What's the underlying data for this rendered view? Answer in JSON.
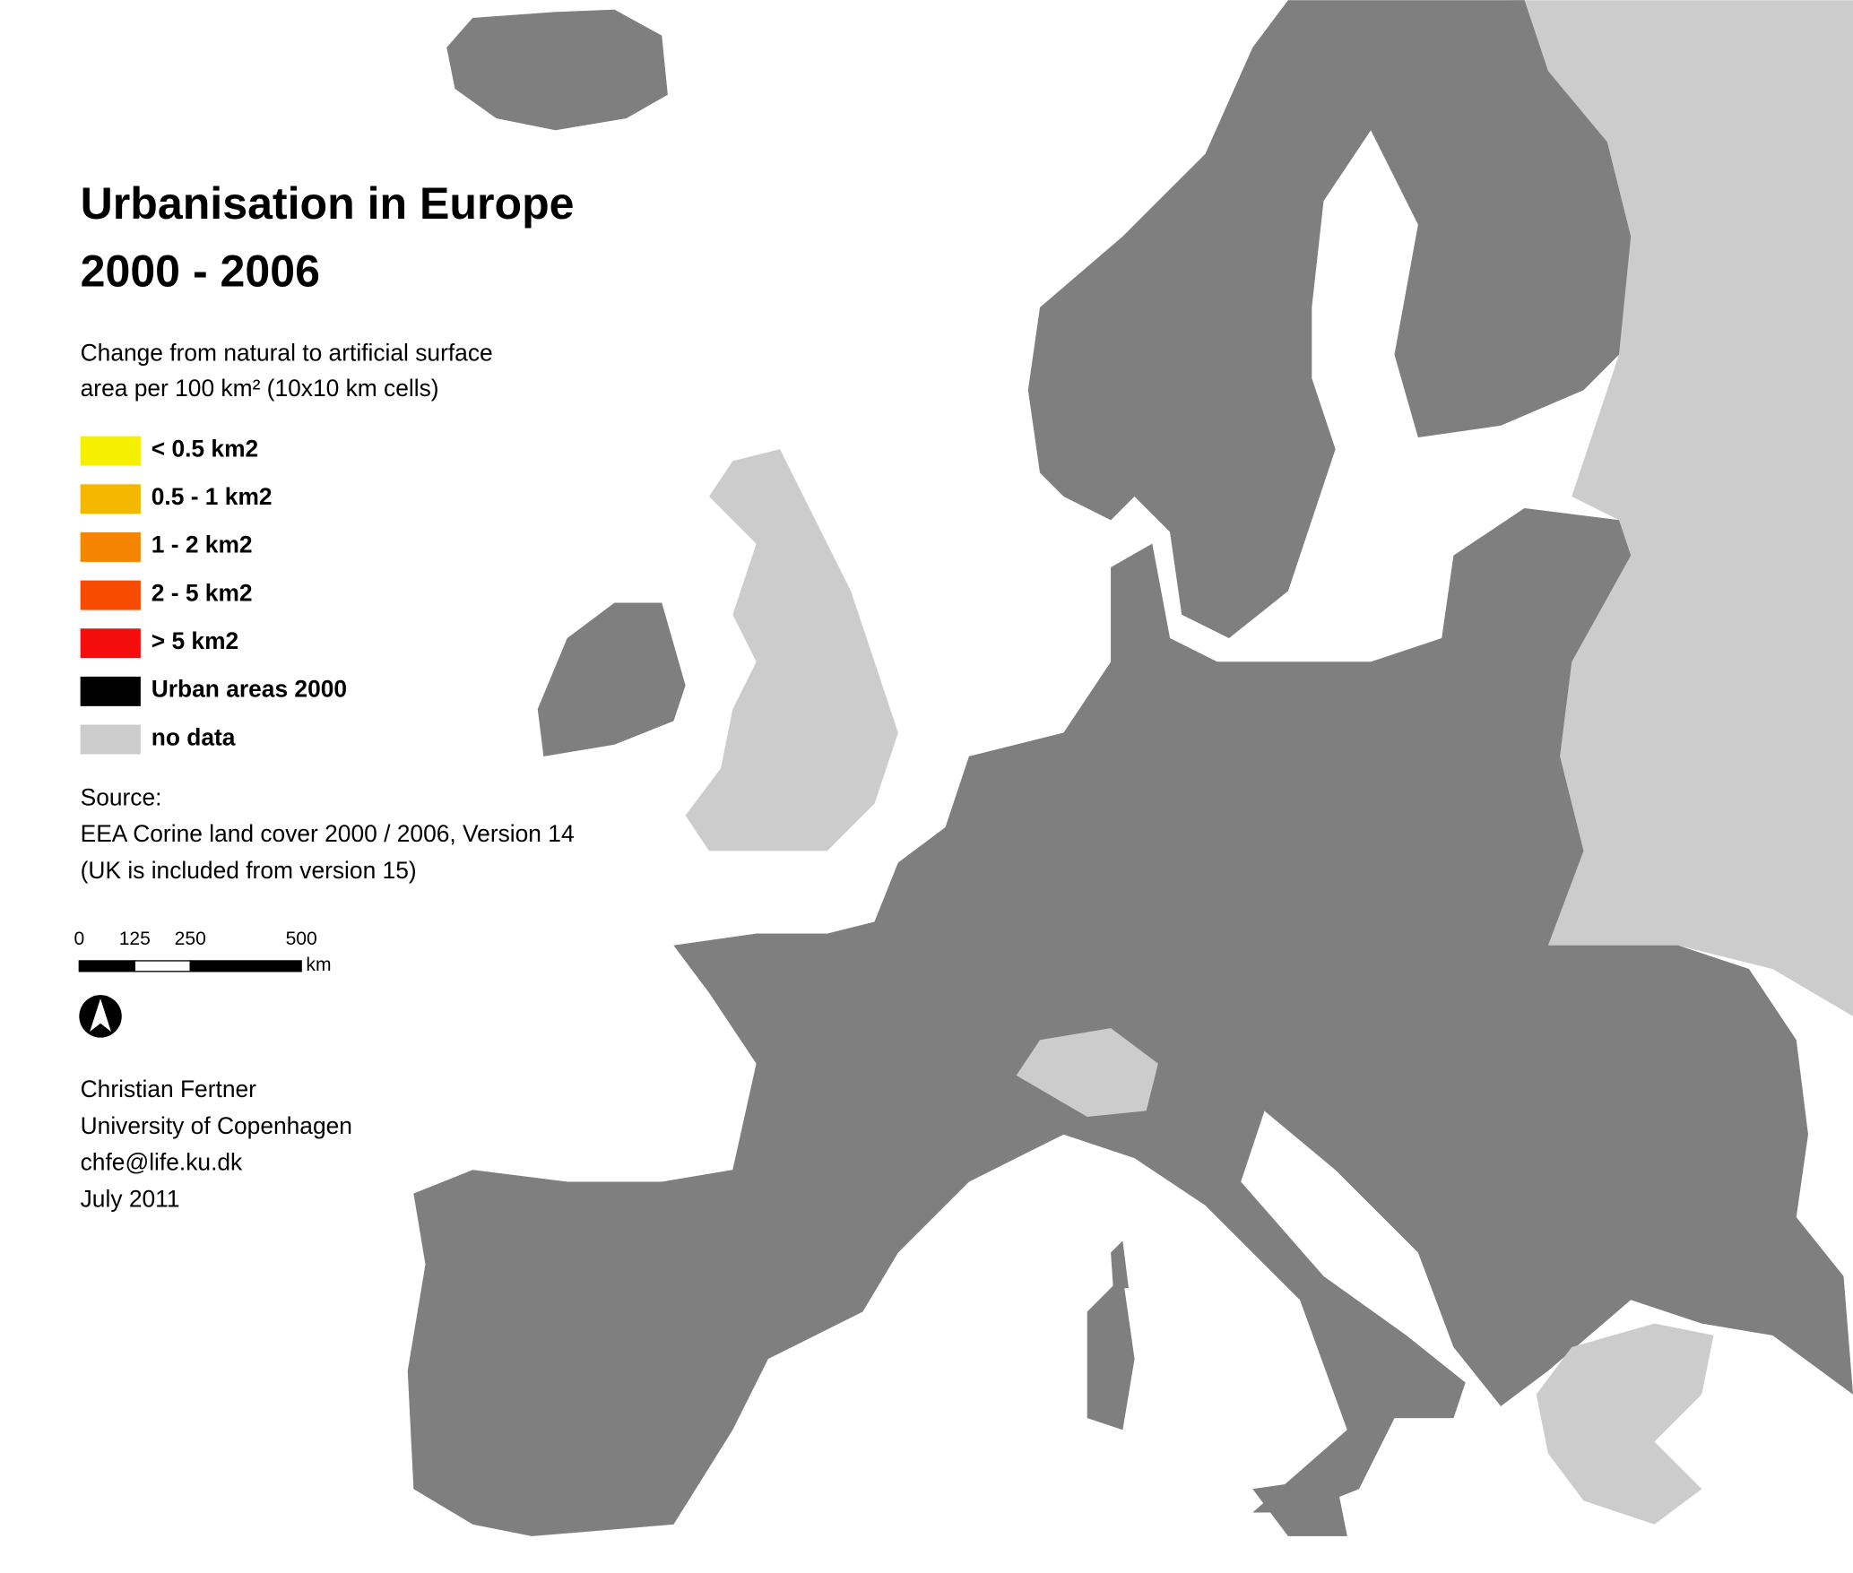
{
  "title": [
    "Urbanisation in Europe",
    "2000 - 2006"
  ],
  "subtitle": [
    "Change from natural to artificial surface",
    "area per 100 km² (10x10 km cells)"
  ],
  "legend": [
    {
      "label": "< 0.5 km2",
      "color": "#f5f000"
    },
    {
      "label": "0.5 - 1 km2",
      "color": "#f5b800"
    },
    {
      "label": "1 - 2 km2",
      "color": "#f58400"
    },
    {
      "label": "2 - 5 km2",
      "color": "#f54a00"
    },
    {
      "label": "> 5 km2",
      "color": "#f50d0d"
    },
    {
      "label": "Urban areas 2000",
      "color": "#000000"
    },
    {
      "label": "no data",
      "color": "#cccccc"
    }
  ],
  "source": [
    "Source:",
    "EEA Corine land cover 2000 / 2006, Version 14",
    "(UK is included from version 15)"
  ],
  "scale_bar": {
    "ticks": [
      0,
      125,
      250,
      500
    ],
    "unit": "km"
  },
  "author": [
    "Christian Fertner",
    "University of Copenhagen",
    "chfe@life.ku.dk",
    "July 2011"
  ]
}
